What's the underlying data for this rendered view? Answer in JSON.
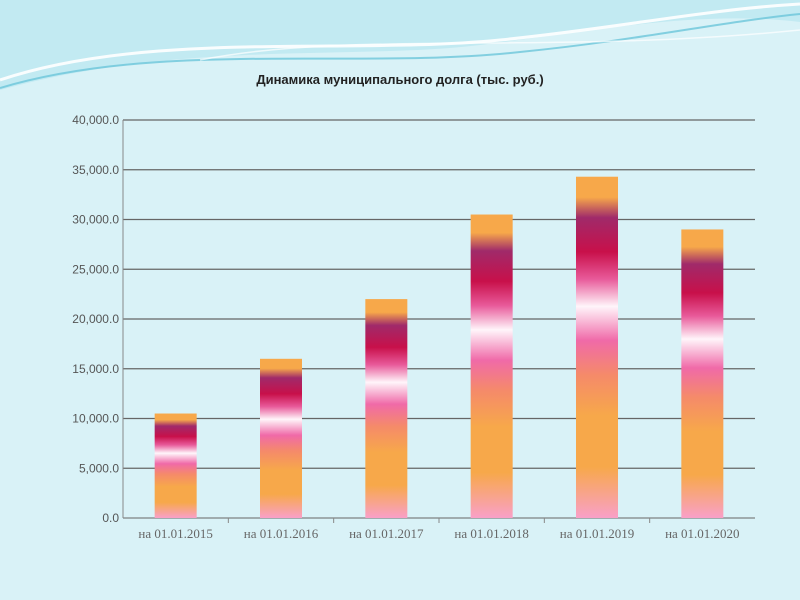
{
  "chart_data": {
    "type": "bar",
    "title": "Динамика муниципального долга (тыс. руб.)",
    "xlabel": "",
    "ylabel": "",
    "categories": [
      "на 01.01.2015",
      "на 01.01.2016",
      "на 01.01.2017",
      "на 01.01.2018",
      "на 01.01.2019",
      "на 01.01.2020"
    ],
    "values": [
      10500,
      16000,
      22000,
      30500,
      34300,
      29000
    ],
    "ylim": [
      0,
      40000
    ],
    "yticks": [
      "0.0",
      "5,000.0",
      "10,000.0",
      "15,000.0",
      "20,000.0",
      "25,000.0",
      "30,000.0",
      "35,000.0",
      "40,000.0"
    ],
    "grid": true,
    "legend": "none",
    "colors": {
      "background": "#d9f2f7",
      "wave_dark": "#5bbfd3",
      "wave_light": "#ffffff",
      "bar_orange": "#f7a84a",
      "bar_crimson": "#c8104a",
      "bar_purple": "#a02a6a",
      "bar_pink": "#f06aa8",
      "bar_white": "#fff5fa",
      "gridline": "#666666"
    }
  }
}
